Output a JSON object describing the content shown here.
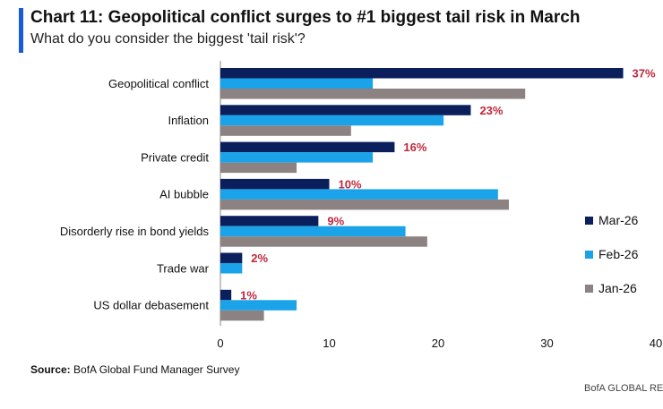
{
  "header": {
    "title": "Chart 11: Geopolitical conflict surges to #1 biggest tail risk in March",
    "subtitle": "What do you consider the biggest 'tail risk'?"
  },
  "chart_data": {
    "type": "bar",
    "orientation": "horizontal",
    "title": "Chart 11: Geopolitical conflict surges to #1 biggest tail risk in March",
    "subtitle": "What do you consider the biggest 'tail risk'?",
    "categories": [
      "Geopolitical conflict",
      "Inflation",
      "Private credit",
      "AI bubble",
      "Disorderly rise in bond yields",
      "Trade war",
      "US dollar debasement"
    ],
    "series": [
      {
        "name": "Mar-26",
        "color": "#0b1f5c",
        "values": [
          37,
          23,
          16,
          10,
          9,
          2,
          1
        ],
        "labels": [
          "37%",
          "23%",
          "16%",
          "10%",
          "9%",
          "2%",
          "1%"
        ]
      },
      {
        "name": "Feb-26",
        "color": "#1aa3e8",
        "values": [
          14,
          20.5,
          14,
          25.5,
          17,
          2,
          7
        ]
      },
      {
        "name": "Jan-26",
        "color": "#8c8282",
        "values": [
          28,
          12,
          7,
          26.5,
          19,
          0,
          4
        ]
      }
    ],
    "xlim": [
      0,
      40
    ],
    "xticks": [
      "0",
      "10",
      "20",
      "30",
      "40"
    ],
    "data_label_color": "#c0283c",
    "legend_position": "right"
  },
  "footer": {
    "source_label": "Source:",
    "source_text": " BofA Global Fund Manager Survey",
    "brand": "BofA GLOBAL RES"
  }
}
